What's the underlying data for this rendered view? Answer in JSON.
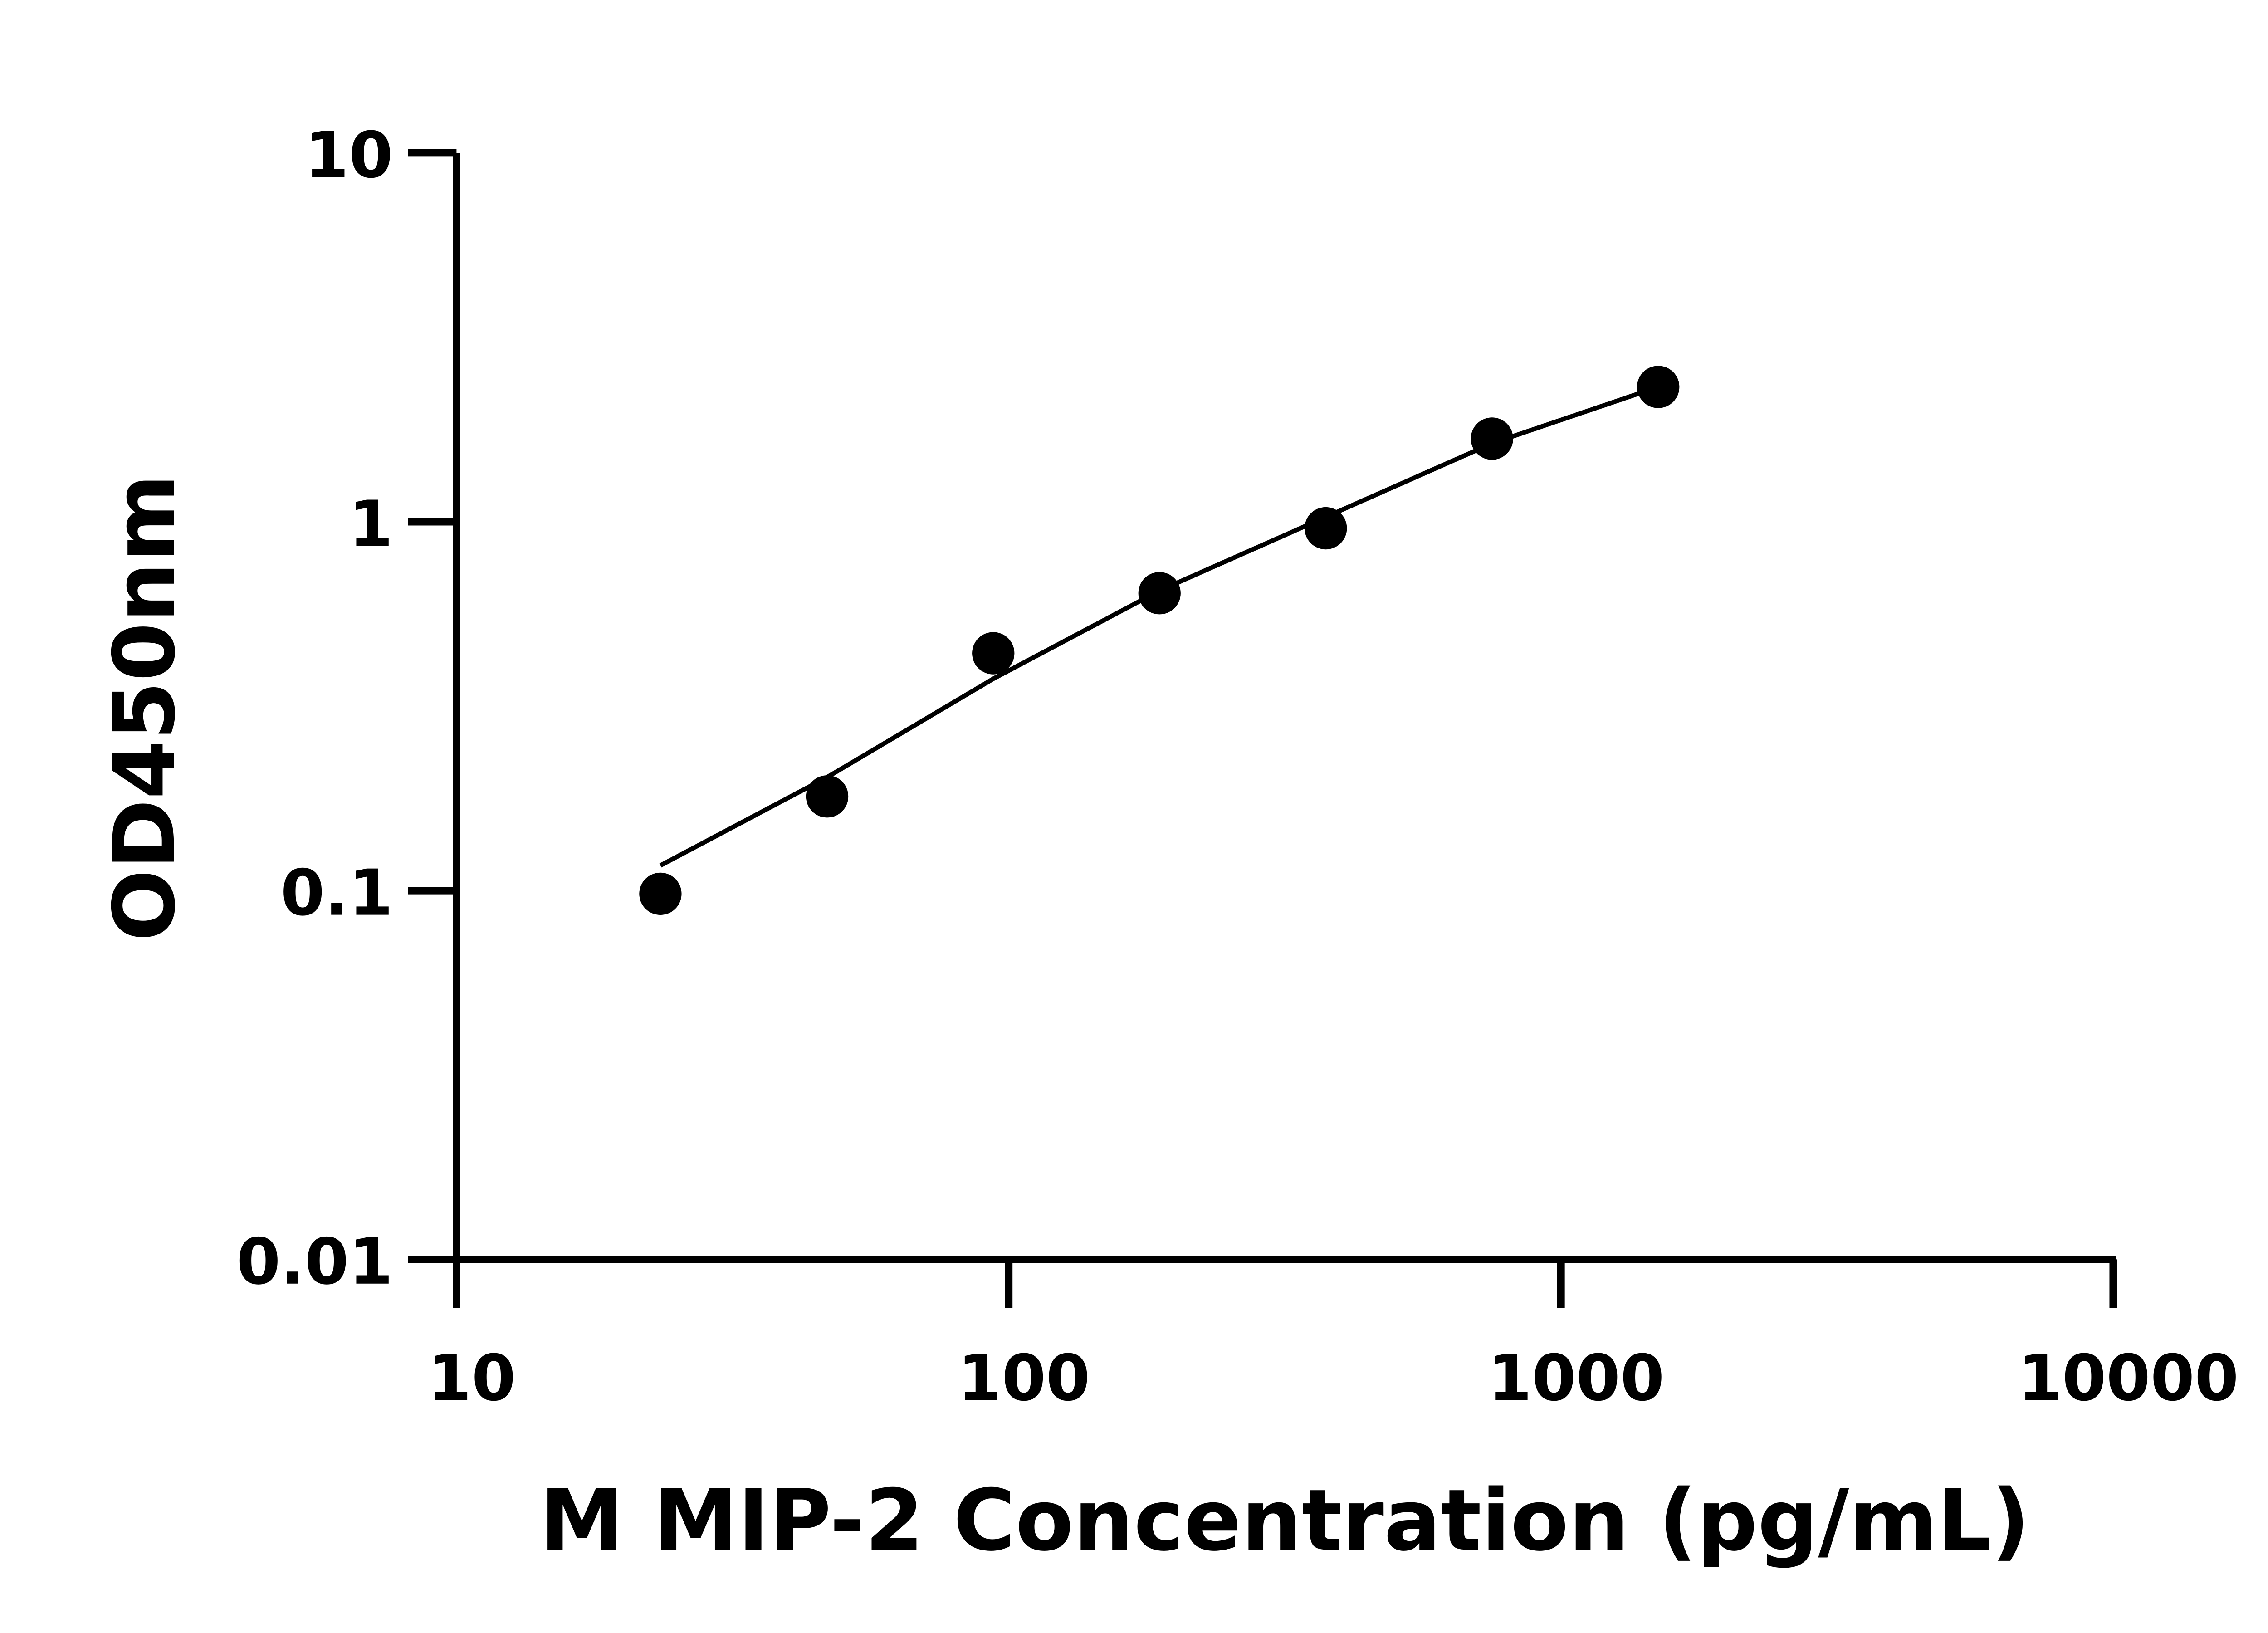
{
  "chart_data": {
    "type": "scatter",
    "title": "",
    "xlabel": "M MIP-2 Concentration (pg/mL)",
    "ylabel": "OD450nm",
    "xscale": "log",
    "yscale": "log",
    "xlim": [
      10,
      10000
    ],
    "ylim": [
      0.01,
      10
    ],
    "xticks": [
      10,
      100,
      1000,
      10000
    ],
    "xtick_labels": [
      "10",
      "100",
      "1000",
      "10000"
    ],
    "yticks": [
      0.01,
      0.1,
      1,
      10
    ],
    "ytick_labels": [
      "0.01",
      "0.1",
      "1",
      "10"
    ],
    "grid": false,
    "legend": "none",
    "points": {
      "x": [
        23.4,
        46.9,
        93.75,
        187.5,
        375,
        750,
        1500
      ],
      "y": [
        0.098,
        0.18,
        0.44,
        0.64,
        0.96,
        1.68,
        2.32
      ]
    },
    "fit_curve": {
      "x": [
        23.4,
        46.9,
        93.75,
        187.5,
        375,
        750,
        1500
      ],
      "y": [
        0.117,
        0.203,
        0.375,
        0.65,
        1.03,
        1.63,
        2.32
      ]
    },
    "color": "#000000"
  }
}
